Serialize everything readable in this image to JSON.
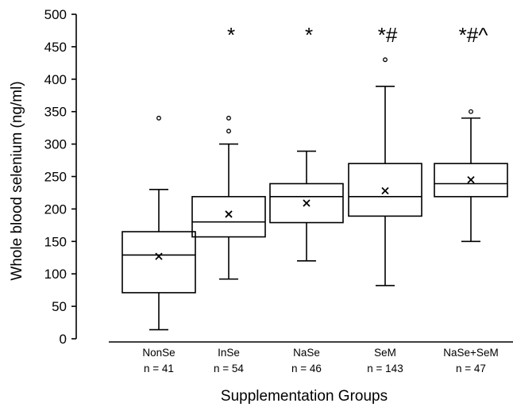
{
  "chart_data": {
    "type": "box",
    "xlabel": "Supplementation Groups",
    "ylabel": "Whole blood selenium (ng/ml)",
    "ylim": [
      0,
      500
    ],
    "yticks": [
      0,
      50,
      100,
      150,
      200,
      250,
      300,
      350,
      400,
      450,
      500
    ],
    "grid": false,
    "groups": [
      {
        "name": "NonSe",
        "n_label": "n = 41",
        "min": 14,
        "q1": 71,
        "median": 129,
        "q3": 165,
        "max": 230,
        "mean": 127,
        "outliers": [
          340
        ],
        "sig": ""
      },
      {
        "name": "InSe",
        "n_label": "n = 54",
        "min": 92,
        "q1": 157,
        "median": 180,
        "q3": 219,
        "max": 300,
        "mean": 192,
        "outliers": [
          320,
          340
        ],
        "sig": "*"
      },
      {
        "name": "NaSe",
        "n_label": "n = 46",
        "min": 120,
        "q1": 179,
        "median": 219,
        "q3": 239,
        "max": 289,
        "mean": 209,
        "outliers": [],
        "sig": "*"
      },
      {
        "name": "SeM",
        "n_label": "n = 143",
        "min": 82,
        "q1": 189,
        "median": 219,
        "q3": 270,
        "max": 389,
        "mean": 228,
        "outliers": [
          430
        ],
        "sig": "*#"
      },
      {
        "name": "NaSe+SeM",
        "n_label": "n = 47",
        "min": 150,
        "q1": 219,
        "median": 239,
        "q3": 270,
        "max": 340,
        "mean": 245,
        "outliers": [
          350
        ],
        "sig": "*#^"
      }
    ]
  }
}
